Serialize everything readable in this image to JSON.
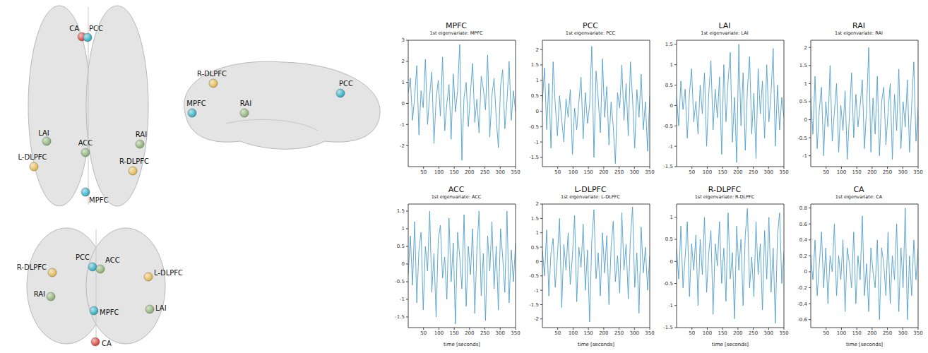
{
  "brain": {
    "nodes": [
      {
        "label": "MPFC",
        "color": "#1ba3bb"
      },
      {
        "label": "PCC",
        "color": "#1ba3bb"
      },
      {
        "label": "LAI",
        "color": "#7fa866"
      },
      {
        "label": "RAI",
        "color": "#7fa866"
      },
      {
        "label": "ACC",
        "color": "#7fa866"
      },
      {
        "label": "L-DLPFC",
        "color": "#e0b03c"
      },
      {
        "label": "R-DLPFC",
        "color": "#e0b03c"
      },
      {
        "label": "CA",
        "color": "#d2302a"
      }
    ],
    "views": [
      [
        "CA",
        "PCC",
        "LAI",
        "L-DLPFC",
        "ACC",
        "RAI",
        "R-DLPFC",
        "MPFC"
      ],
      [
        "R-DLPFC",
        "PCC",
        "MPFC",
        "RAI"
      ],
      [
        "R-DLPFC",
        "PCC",
        "ACC",
        "L-DLPFC",
        "RAI",
        "MPFC",
        "LAI",
        "CA"
      ]
    ]
  },
  "chart_data": [
    {
      "type": "line",
      "title": "MPFC",
      "subtitle": "1st eigenvariate: MPFC",
      "color": "#4f9ec9",
      "xlim": [
        0,
        350
      ],
      "xticks": [
        50,
        100,
        150,
        200,
        250,
        300,
        350
      ],
      "ylim": [
        -3,
        3
      ],
      "yticks": [
        -2,
        -1,
        0,
        1,
        2,
        3
      ],
      "x": [
        0,
        7,
        14,
        21,
        28,
        35,
        42,
        49,
        56,
        63,
        70,
        77,
        84,
        91,
        98,
        105,
        112,
        119,
        126,
        133,
        140,
        147,
        154,
        161,
        168,
        175,
        182,
        189,
        196,
        203,
        210,
        217,
        224,
        231,
        238,
        245,
        252,
        259,
        266,
        273,
        280,
        287,
        294,
        301,
        308,
        315,
        322,
        329,
        336,
        343,
        350
      ],
      "values": [
        0.5,
        1.2,
        -0.8,
        0.3,
        1.8,
        -1.5,
        0.6,
        -0.2,
        2.1,
        -1.0,
        0.4,
        1.5,
        -1.9,
        0.2,
        1.1,
        -0.6,
        2.2,
        -1.3,
        0.0,
        0.9,
        -1.7,
        1.4,
        -0.4,
        0.6,
        2.8,
        -2.7,
        0.3,
        1.0,
        -1.1,
        0.5,
        1.9,
        -0.9,
        0.2,
        -1.4,
        1.3,
        0.7,
        -0.3,
        2.3,
        -1.6,
        0.4,
        1.2,
        -0.7,
        -2.1,
        0.8,
        1.6,
        -1.2,
        0.1,
        2.0,
        -0.8,
        0.6,
        -0.4
      ]
    },
    {
      "type": "line",
      "title": "PCC",
      "subtitle": "1st eigenvariate: PCC",
      "color": "#4f9ec9",
      "xlim": [
        0,
        350
      ],
      "xticks": [
        50,
        100,
        150,
        200,
        250,
        300,
        350
      ],
      "ylim": [
        -1.8,
        2.3
      ],
      "yticks": [
        -1.5,
        -1,
        -0.5,
        0,
        0.5,
        1,
        1.5,
        2
      ],
      "x": [
        0,
        7,
        14,
        21,
        28,
        35,
        42,
        49,
        56,
        63,
        70,
        77,
        84,
        91,
        98,
        105,
        112,
        119,
        126,
        133,
        140,
        147,
        154,
        161,
        168,
        175,
        182,
        189,
        196,
        203,
        210,
        217,
        224,
        231,
        238,
        245,
        252,
        259,
        266,
        273,
        280,
        287,
        294,
        301,
        308,
        315,
        322,
        329,
        336,
        343,
        350
      ],
      "values": [
        0.3,
        1.4,
        -0.6,
        0.9,
        -1.2,
        1.6,
        0.2,
        -0.8,
        0.5,
        -0.3,
        -1.0,
        0.4,
        -0.2,
        0.7,
        -1.4,
        0.1,
        -0.6,
        0.3,
        1.1,
        -0.9,
        0.6,
        -0.4,
        0.2,
        2.1,
        -1.5,
        1.3,
        0.4,
        -0.7,
        1.7,
        -0.2,
        0.8,
        -1.1,
        0.3,
        -0.5,
        -1.7,
        0.6,
        0.1,
        1.5,
        -0.3,
        0.9,
        -0.8,
        1.6,
        0.4,
        -1.2,
        0.7,
        -0.2,
        1.2,
        -0.6,
        0.3,
        -1.3,
        0.5
      ]
    },
    {
      "type": "line",
      "title": "LAI",
      "subtitle": "1st eigenvariate: LAI",
      "color": "#4f9ec9",
      "xlim": [
        0,
        350
      ],
      "xticks": [
        50,
        100,
        150,
        200,
        250,
        300,
        350
      ],
      "ylim": [
        -1.5,
        1.6
      ],
      "yticks": [
        -1.5,
        -1,
        -0.5,
        0,
        0.5,
        1,
        1.5
      ],
      "x": [
        0,
        7,
        14,
        21,
        28,
        35,
        42,
        49,
        56,
        63,
        70,
        77,
        84,
        91,
        98,
        105,
        112,
        119,
        126,
        133,
        140,
        147,
        154,
        161,
        168,
        175,
        182,
        189,
        196,
        203,
        210,
        217,
        224,
        231,
        238,
        245,
        252,
        259,
        266,
        273,
        280,
        287,
        294,
        301,
        308,
        315,
        322,
        329,
        336,
        343,
        350
      ],
      "values": [
        0.2,
        -0.5,
        0.6,
        -0.1,
        0.4,
        -0.8,
        0.3,
        0.9,
        -0.4,
        0.1,
        -0.7,
        0.5,
        -0.2,
        0.8,
        -1.0,
        0.3,
        1.1,
        -0.6,
        0.4,
        -0.3,
        0.7,
        -1.2,
        1.0,
        -0.4,
        0.6,
        1.3,
        -0.9,
        0.2,
        -1.4,
        1.5,
        -0.5,
        0.8,
        -1.1,
        0.4,
        1.2,
        -0.7,
        0.3,
        -1.3,
        0.9,
        -0.2,
        0.6,
        -0.8,
        1.0,
        -0.4,
        0.3,
        1.4,
        -1.0,
        0.5,
        -0.6,
        0.2,
        -0.3
      ]
    },
    {
      "type": "line",
      "title": "RAI",
      "subtitle": "1st eigenvariate: RAI",
      "color": "#4f9ec9",
      "xlim": [
        0,
        350
      ],
      "xticks": [
        50,
        100,
        150,
        200,
        250,
        300,
        350
      ],
      "ylim": [
        -1.3,
        2.2
      ],
      "yticks": [
        -1,
        -0.5,
        0,
        0.5,
        1,
        1.5,
        2
      ],
      "x": [
        0,
        7,
        14,
        21,
        28,
        35,
        42,
        49,
        56,
        63,
        70,
        77,
        84,
        91,
        98,
        105,
        112,
        119,
        126,
        133,
        140,
        147,
        154,
        161,
        168,
        175,
        182,
        189,
        196,
        203,
        210,
        217,
        224,
        231,
        238,
        245,
        252,
        259,
        266,
        273,
        280,
        287,
        294,
        301,
        308,
        315,
        322,
        329,
        336,
        343,
        350
      ],
      "values": [
        0.6,
        -0.4,
        1.2,
        -0.8,
        0.3,
        0.9,
        -1.0,
        0.5,
        -0.2,
        1.5,
        -0.6,
        0.2,
        1.0,
        -0.9,
        0.4,
        -0.3,
        0.8,
        -1.1,
        0.1,
        1.3,
        -0.5,
        0.7,
        -0.2,
        0.4,
        1.1,
        -0.8,
        0.3,
        2.0,
        -0.9,
        0.6,
        -0.4,
        1.2,
        -1.0,
        0.5,
        0.9,
        -0.7,
        0.2,
        1.0,
        -1.1,
        0.7,
        -0.3,
        1.4,
        -0.8,
        0.5,
        -0.2,
        1.1,
        -0.9,
        0.4,
        1.6,
        -0.6,
        0.3
      ]
    },
    {
      "type": "line",
      "title": "ACC",
      "subtitle": "1st eigenvariate: ACC",
      "x_label": "time [seconds]",
      "color": "#4f9ec9",
      "xlim": [
        0,
        350
      ],
      "xticks": [
        50,
        100,
        150,
        200,
        250,
        300,
        350
      ],
      "ylim": [
        -1.8,
        1.7
      ],
      "yticks": [
        -1.5,
        -1,
        -0.5,
        0,
        0.5,
        1,
        1.5
      ],
      "x": [
        0,
        7,
        14,
        21,
        28,
        35,
        42,
        49,
        56,
        63,
        70,
        77,
        84,
        91,
        98,
        105,
        112,
        119,
        126,
        133,
        140,
        147,
        154,
        161,
        168,
        175,
        182,
        189,
        196,
        203,
        210,
        217,
        224,
        231,
        238,
        245,
        252,
        259,
        266,
        273,
        280,
        287,
        294,
        301,
        308,
        315,
        322,
        329,
        336,
        343,
        350
      ],
      "values": [
        -0.3,
        0.8,
        -0.6,
        1.2,
        -1.1,
        0.4,
        0.9,
        -1.3,
        0.5,
        -0.2,
        1.5,
        -0.8,
        0.3,
        -1.5,
        0.7,
        1.1,
        -0.4,
        0.2,
        -1.0,
        1.3,
        -0.5,
        0.6,
        -1.7,
        0.9,
        0.2,
        -0.7,
        1.4,
        -1.2,
        0.5,
        -0.3,
        1.0,
        -1.4,
        0.4,
        1.5,
        -0.9,
        0.3,
        -1.6,
        0.8,
        -0.2,
        1.2,
        -0.7,
        0.5,
        -1.3,
        1.0,
        0.2,
        -0.8,
        1.5,
        -1.1,
        0.4,
        -0.5,
        0.6
      ]
    },
    {
      "type": "line",
      "title": "L-DLPFC",
      "subtitle": "1st eigenvariate: L-DLPFC",
      "x_label": "time [seconds]",
      "color": "#4f9ec9",
      "xlim": [
        0,
        350
      ],
      "xticks": [
        50,
        100,
        150,
        200,
        250,
        300,
        350
      ],
      "ylim": [
        -2.3,
        2
      ],
      "yticks": [
        -2,
        -1.5,
        -1,
        -0.5,
        0,
        0.5,
        1,
        1.5,
        2
      ],
      "x": [
        0,
        7,
        14,
        21,
        28,
        35,
        42,
        49,
        56,
        63,
        70,
        77,
        84,
        91,
        98,
        105,
        112,
        119,
        126,
        133,
        140,
        147,
        154,
        161,
        168,
        175,
        182,
        189,
        196,
        203,
        210,
        217,
        224,
        231,
        238,
        245,
        252,
        259,
        266,
        273,
        280,
        287,
        294,
        301,
        308,
        315,
        322,
        329,
        336,
        343,
        350
      ],
      "values": [
        0.4,
        -0.5,
        1.1,
        -1.2,
        0.3,
        0.8,
        -0.9,
        0.2,
        1.5,
        -1.6,
        0.6,
        -0.3,
        1.0,
        -0.8,
        0.2,
        1.6,
        -1.4,
        0.5,
        -0.2,
        1.3,
        -1.0,
        0.4,
        -2.1,
        0.7,
        1.8,
        -0.6,
        0.3,
        -1.2,
        1.0,
        -0.4,
        0.9,
        -1.5,
        0.5,
        1.4,
        -0.7,
        0.2,
        -1.1,
        1.7,
        -0.3,
        0.6,
        -1.3,
        0.8,
        1.9,
        -0.9,
        0.3,
        -1.8,
        1.2,
        -0.4,
        0.5,
        -1.0,
        0.2
      ]
    },
    {
      "type": "line",
      "title": "R-DLPFC",
      "subtitle": "1st eigenvariate: R-DLPFC",
      "x_label": "time [seconds]",
      "color": "#4f9ec9",
      "xlim": [
        0,
        350
      ],
      "xticks": [
        50,
        100,
        150,
        200,
        250,
        300,
        350
      ],
      "ylim": [
        -1.5,
        1.3
      ],
      "yticks": [
        -1.5,
        -1,
        -0.5,
        0,
        0.5,
        1
      ],
      "x": [
        0,
        7,
        14,
        21,
        28,
        35,
        42,
        49,
        56,
        63,
        70,
        77,
        84,
        91,
        98,
        105,
        112,
        119,
        126,
        133,
        140,
        147,
        154,
        161,
        168,
        175,
        182,
        189,
        196,
        203,
        210,
        217,
        224,
        231,
        238,
        245,
        252,
        259,
        266,
        273,
        280,
        287,
        294,
        301,
        308,
        315,
        322,
        329,
        336,
        343,
        350
      ],
      "values": [
        0.3,
        -0.4,
        0.8,
        -0.6,
        0.1,
        0.9,
        -0.8,
        0.4,
        -0.2,
        0.6,
        -1.0,
        0.5,
        -0.3,
        1.0,
        -0.7,
        0.2,
        0.7,
        -1.2,
        0.4,
        -0.1,
        0.9,
        -0.5,
        0.3,
        -0.9,
        1.1,
        -0.4,
        0.2,
        -1.3,
        0.8,
        -0.2,
        0.5,
        -1.0,
        0.6,
        1.2,
        -0.6,
        0.1,
        -0.8,
        0.9,
        -0.3,
        0.4,
        -1.1,
        0.7,
        -0.4,
        1.0,
        -0.7,
        0.3,
        -1.4,
        0.6,
        1.1,
        -0.5,
        0.2
      ]
    },
    {
      "type": "line",
      "title": "CA",
      "subtitle": "1st eigenvariate: CA",
      "x_label": "time [seconds]",
      "color": "#4f9ec9",
      "xlim": [
        0,
        350
      ],
      "xticks": [
        50,
        100,
        150,
        200,
        250,
        300,
        350
      ],
      "ylim": [
        -0.7,
        0.85
      ],
      "yticks": [
        -0.6,
        -0.4,
        -0.2,
        0,
        0.2,
        0.4,
        0.6,
        0.8
      ],
      "x": [
        0,
        7,
        14,
        21,
        28,
        35,
        42,
        49,
        56,
        63,
        70,
        77,
        84,
        91,
        98,
        105,
        112,
        119,
        126,
        133,
        140,
        147,
        154,
        161,
        168,
        175,
        182,
        189,
        196,
        203,
        210,
        217,
        224,
        231,
        238,
        245,
        252,
        259,
        266,
        273,
        280,
        287,
        294,
        301,
        308,
        315,
        322,
        329,
        336,
        343,
        350
      ],
      "values": [
        0.2,
        -0.1,
        0.4,
        -0.3,
        0.1,
        0.5,
        -0.2,
        0.3,
        -0.4,
        0.2,
        0.0,
        0.6,
        -0.3,
        0.2,
        -0.1,
        0.4,
        -0.5,
        0.3,
        0.1,
        -0.2,
        0.5,
        -0.4,
        0.2,
        -0.1,
        0.7,
        -0.3,
        0.1,
        -0.5,
        0.3,
        0.0,
        -0.2,
        0.4,
        -0.6,
        0.3,
        0.1,
        -0.3,
        0.5,
        -0.4,
        0.2,
        -0.1,
        0.6,
        -0.5,
        0.3,
        -0.2,
        0.8,
        -0.6,
        0.2,
        -0.3,
        0.4,
        -0.1,
        0.3
      ]
    }
  ]
}
